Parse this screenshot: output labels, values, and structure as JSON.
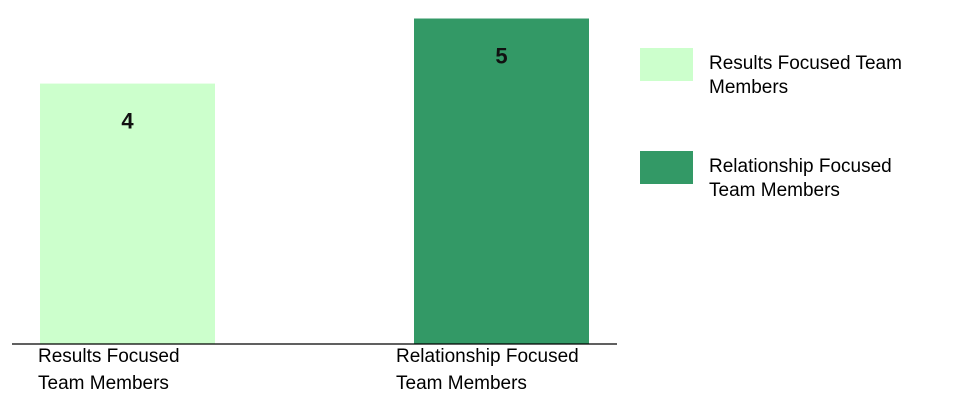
{
  "chart_data": {
    "type": "bar",
    "categories": [
      [
        "Results Focused",
        "Team Members"
      ],
      [
        "Relationship Focused",
        "Team Members"
      ]
    ],
    "values": [
      4,
      5
    ],
    "colors": [
      "#ccffcc",
      "#339966"
    ],
    "data_labels": [
      "4",
      "5"
    ],
    "title": "",
    "xlabel": "",
    "ylabel": "",
    "ylim": [
      0,
      5.1
    ],
    "grid": false,
    "legend": {
      "placement": "right",
      "entries": [
        {
          "label": [
            "Results Focused Team",
            "Members"
          ],
          "color": "#ccffcc"
        },
        {
          "label": [
            "Relationship Focused",
            "Team Members"
          ],
          "color": "#339966"
        }
      ]
    }
  }
}
